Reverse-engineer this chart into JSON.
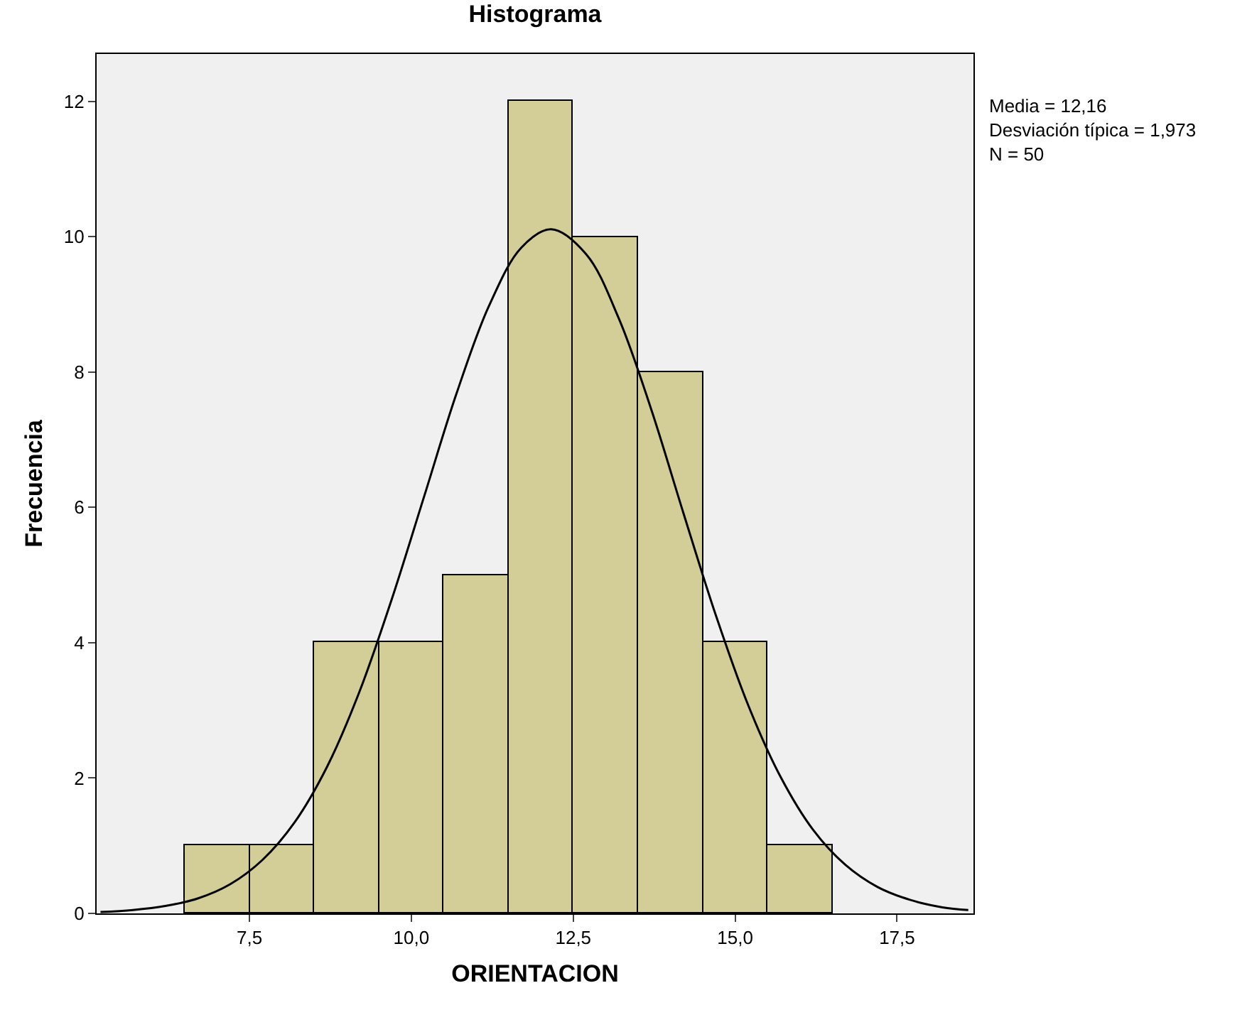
{
  "chart_data": {
    "type": "histogram",
    "title": "Histograma",
    "xlabel": "ORIENTACION",
    "ylabel": "Frecuencia",
    "bins": [
      6.5,
      7.5,
      8.5,
      9.5,
      10.5,
      11.5,
      12.5,
      13.5,
      14.5,
      15.5,
      16.5
    ],
    "values": [
      1,
      1,
      4,
      4,
      5,
      12,
      10,
      8,
      4,
      1
    ],
    "color": "#d3ce97",
    "series": [
      {
        "type": "line",
        "color": "#000000",
        "x": [
          5.2,
          5.7,
          6.2,
          6.7,
          7.2,
          7.7,
          8.2,
          8.7,
          9.2,
          9.7,
          10.2,
          10.7,
          11.2,
          11.7,
          12.16,
          12.7,
          13.2,
          13.7,
          14.2,
          14.7,
          15.2,
          15.7,
          16.2,
          16.7,
          17.2,
          17.7,
          18.2,
          18.6
        ],
        "values": [
          0.02,
          0.05,
          0.11,
          0.22,
          0.43,
          0.79,
          1.35,
          2.17,
          3.28,
          4.65,
          6.17,
          7.69,
          8.98,
          9.84,
          10.11,
          9.74,
          8.8,
          7.46,
          5.92,
          4.41,
          3.08,
          2.02,
          1.24,
          0.72,
          0.39,
          0.2,
          0.09,
          0.05
        ]
      }
    ],
    "xlim": [
      5.14,
      18.68
    ],
    "ylim": [
      0,
      12.7
    ],
    "xticks": [
      {
        "value": 7.5,
        "label": "7,5"
      },
      {
        "value": 10,
        "label": "10,0"
      },
      {
        "value": 12.5,
        "label": "12,5"
      },
      {
        "value": 15,
        "label": "15,0"
      },
      {
        "value": 17.5,
        "label": "17,5"
      }
    ],
    "yticks": [
      0,
      2,
      4,
      6,
      8,
      10,
      12
    ],
    "marker": "none",
    "line_style": "solid",
    "grid": false,
    "annotations": [
      "Media = 12,16",
      "Desviación típica = 1,973",
      "N = 50"
    ]
  }
}
